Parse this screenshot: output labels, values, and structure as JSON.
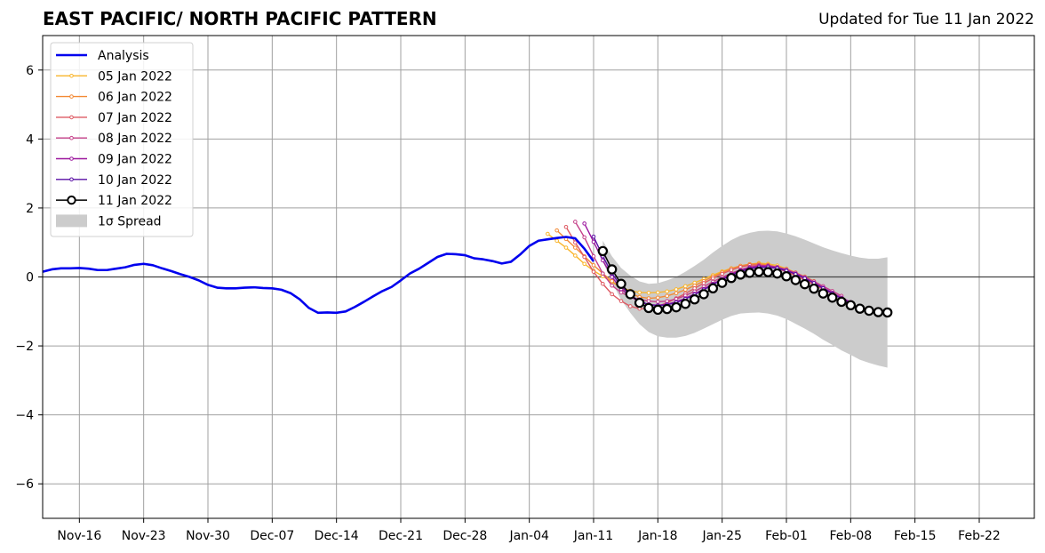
{
  "chart_data": {
    "type": "line",
    "title": "EAST PACIFIC/ NORTH PACIFIC PATTERN",
    "subtitle": "Updated for Tue 11 Jan 2022",
    "xlabel": "",
    "ylabel": "",
    "x_range": [
      "2021-11-12",
      "2022-02-28"
    ],
    "ylim": [
      -7,
      7
    ],
    "yticks": [
      -6,
      -4,
      -2,
      0,
      2,
      4,
      6
    ],
    "ytick_labels": [
      "−6",
      "−4",
      "−2",
      "0",
      "2",
      "4",
      "6"
    ],
    "xticks": [
      "2021-11-16",
      "2021-11-23",
      "2021-11-30",
      "2021-12-07",
      "2021-12-14",
      "2021-12-21",
      "2021-12-28",
      "2022-01-04",
      "2022-01-11",
      "2022-01-18",
      "2022-01-25",
      "2022-02-01",
      "2022-02-08",
      "2022-02-15",
      "2022-02-22"
    ],
    "xtick_labels": [
      "Nov-16",
      "Nov-23",
      "Nov-30",
      "Dec-07",
      "Dec-14",
      "Dec-21",
      "Dec-28",
      "Jan-04",
      "Jan-11",
      "Jan-18",
      "Jan-25",
      "Feb-01",
      "Feb-08",
      "Feb-15",
      "Feb-22"
    ],
    "grid": true,
    "legend_position": "top-left",
    "legend_sigma_label": "1σ Spread",
    "analysis": {
      "name": "Analysis",
      "color": "#0000ee",
      "points": [
        [
          "2021-11-12",
          0.15
        ],
        [
          "2021-11-13",
          0.22
        ],
        [
          "2021-11-14",
          0.25
        ],
        [
          "2021-11-15",
          0.25
        ],
        [
          "2021-11-16",
          0.26
        ],
        [
          "2021-11-17",
          0.24
        ],
        [
          "2021-11-18",
          0.2
        ],
        [
          "2021-11-19",
          0.2
        ],
        [
          "2021-11-20",
          0.24
        ],
        [
          "2021-11-21",
          0.28
        ],
        [
          "2021-11-22",
          0.35
        ],
        [
          "2021-11-23",
          0.38
        ],
        [
          "2021-11-24",
          0.34
        ],
        [
          "2021-11-25",
          0.25
        ],
        [
          "2021-11-26",
          0.17
        ],
        [
          "2021-11-27",
          0.08
        ],
        [
          "2021-11-28",
          0.0
        ],
        [
          "2021-11-29",
          -0.1
        ],
        [
          "2021-11-30",
          -0.23
        ],
        [
          "2021-12-01",
          -0.31
        ],
        [
          "2021-12-02",
          -0.33
        ],
        [
          "2021-12-03",
          -0.33
        ],
        [
          "2021-12-04",
          -0.31
        ],
        [
          "2021-12-05",
          -0.3
        ],
        [
          "2021-12-06",
          -0.32
        ],
        [
          "2021-12-07",
          -0.33
        ],
        [
          "2021-12-08",
          -0.37
        ],
        [
          "2021-12-09",
          -0.47
        ],
        [
          "2021-12-10",
          -0.65
        ],
        [
          "2021-12-11",
          -0.9
        ],
        [
          "2021-12-12",
          -1.04
        ],
        [
          "2021-12-13",
          -1.03
        ],
        [
          "2021-12-14",
          -1.04
        ],
        [
          "2021-12-15",
          -1.0
        ],
        [
          "2021-12-16",
          -0.87
        ],
        [
          "2021-12-17",
          -0.72
        ],
        [
          "2021-12-18",
          -0.56
        ],
        [
          "2021-12-19",
          -0.41
        ],
        [
          "2021-12-20",
          -0.29
        ],
        [
          "2021-12-21",
          -0.1
        ],
        [
          "2021-12-22",
          0.1
        ],
        [
          "2021-12-23",
          0.24
        ],
        [
          "2021-12-24",
          0.41
        ],
        [
          "2021-12-25",
          0.58
        ],
        [
          "2021-12-26",
          0.67
        ],
        [
          "2021-12-27",
          0.66
        ],
        [
          "2021-12-28",
          0.63
        ],
        [
          "2021-12-29",
          0.54
        ],
        [
          "2021-12-30",
          0.51
        ],
        [
          "2021-12-31",
          0.46
        ],
        [
          "2022-01-01",
          0.39
        ],
        [
          "2022-01-02",
          0.44
        ],
        [
          "2022-01-03",
          0.65
        ],
        [
          "2022-01-04",
          0.9
        ],
        [
          "2022-01-05",
          1.05
        ],
        [
          "2022-01-06",
          1.09
        ],
        [
          "2022-01-07",
          1.13
        ],
        [
          "2022-01-08",
          1.16
        ],
        [
          "2022-01-09",
          1.12
        ],
        [
          "2022-01-10",
          0.82
        ],
        [
          "2022-01-11",
          0.45
        ]
      ]
    },
    "forecasts": [
      {
        "name": "05 Jan 2022",
        "color": "#f9b52c",
        "start": "2022-01-06",
        "values": [
          1.25,
          1.05,
          0.85,
          0.62,
          0.38,
          0.18,
          0.02,
          -0.15,
          -0.3,
          -0.4,
          -0.45,
          -0.46,
          -0.45,
          -0.42,
          -0.36,
          -0.27,
          -0.17,
          -0.06,
          0.05,
          0.16,
          0.25,
          0.32,
          0.37,
          0.4,
          0.38,
          0.33,
          0.24,
          0.13,
          0.01,
          -0.12
        ]
      },
      {
        "name": "06 Jan 2022",
        "color": "#f38a35",
        "start": "2022-01-07",
        "values": [
          1.35,
          1.1,
          0.85,
          0.6,
          0.34,
          0.1,
          -0.12,
          -0.33,
          -0.48,
          -0.58,
          -0.62,
          -0.6,
          -0.55,
          -0.47,
          -0.37,
          -0.25,
          -0.12,
          0.01,
          0.13,
          0.24,
          0.32,
          0.37,
          0.38,
          0.35,
          0.28,
          0.18,
          0.07,
          -0.05,
          -0.18,
          -0.31
        ]
      },
      {
        "name": "07 Jan 2022",
        "color": "#de5a63",
        "start": "2022-01-08",
        "values": [
          1.45,
          1.0,
          0.58,
          0.15,
          -0.2,
          -0.5,
          -0.7,
          -0.85,
          -0.92,
          -0.92,
          -0.85,
          -0.75,
          -0.62,
          -0.48,
          -0.33,
          -0.18,
          -0.04,
          0.09,
          0.2,
          0.29,
          0.34,
          0.35,
          0.32,
          0.25,
          0.15,
          0.04,
          -0.09,
          -0.22,
          -0.36,
          -0.49
        ]
      },
      {
        "name": "08 Jan 2022",
        "color": "#c43f88",
        "start": "2022-01-09",
        "values": [
          1.6,
          1.15,
          0.6,
          0.1,
          -0.25,
          -0.45,
          -0.58,
          -0.65,
          -0.7,
          -0.72,
          -0.7,
          -0.64,
          -0.54,
          -0.42,
          -0.28,
          -0.14,
          -0.01,
          0.11,
          0.21,
          0.29,
          0.33,
          0.33,
          0.29,
          0.22,
          0.12,
          0.0,
          -0.13,
          -0.27,
          -0.41,
          -0.55
        ]
      },
      {
        "name": "09 Jan 2022",
        "color": "#9c179e",
        "start": "2022-01-10",
        "values": [
          1.55,
          1.02,
          0.48,
          0.0,
          -0.35,
          -0.57,
          -0.72,
          -0.8,
          -0.82,
          -0.79,
          -0.72,
          -0.62,
          -0.49,
          -0.35,
          -0.2,
          -0.06,
          0.08,
          0.19,
          0.27,
          0.31,
          0.31,
          0.27,
          0.19,
          0.09,
          -0.03,
          -0.17,
          -0.31,
          -0.46,
          -0.6,
          -0.73
        ]
      },
      {
        "name": "10 Jan 2022",
        "color": "#5a0fa5",
        "start": "2022-01-11",
        "values": [
          1.17,
          0.6,
          0.1,
          -0.27,
          -0.53,
          -0.7,
          -0.8,
          -0.83,
          -0.81,
          -0.74,
          -0.64,
          -0.51,
          -0.37,
          -0.22,
          -0.08,
          0.05,
          0.16,
          0.24,
          0.28,
          0.28,
          0.25,
          0.18,
          0.08,
          -0.04,
          -0.18,
          -0.33,
          -0.48,
          -0.63,
          -0.77,
          -0.91
        ]
      }
    ],
    "current_forecast": {
      "name": "11 Jan 2022",
      "color": "#000000",
      "marker_fill": "#ffffff",
      "start": "2022-01-12",
      "values": [
        0.75,
        0.22,
        -0.2,
        -0.5,
        -0.75,
        -0.9,
        -0.95,
        -0.93,
        -0.88,
        -0.78,
        -0.65,
        -0.5,
        -0.33,
        -0.17,
        -0.03,
        0.07,
        0.12,
        0.15,
        0.14,
        0.1,
        0.02,
        -0.09,
        -0.21,
        -0.34,
        -0.48,
        -0.6,
        -0.72,
        -0.82,
        -0.92,
        -0.98,
        -1.02,
        -1.03
      ]
    },
    "spread": {
      "name": "1σ Spread",
      "color": "#cccccc",
      "start": "2022-01-12",
      "half_width": [
        0.3,
        0.38,
        0.46,
        0.54,
        0.62,
        0.7,
        0.77,
        0.83,
        0.88,
        0.93,
        0.97,
        1.0,
        1.04,
        1.07,
        1.1,
        1.13,
        1.16,
        1.18,
        1.2,
        1.22,
        1.24,
        1.27,
        1.29,
        1.31,
        1.34,
        1.37,
        1.41,
        1.44,
        1.48,
        1.51,
        1.55,
        1.6
      ]
    }
  }
}
